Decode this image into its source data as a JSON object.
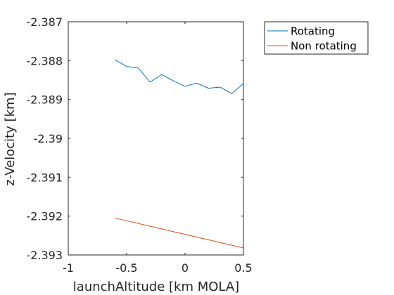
{
  "chart_data": {
    "type": "line",
    "title": "",
    "xlabel": "launchAltitude [km MOLA]",
    "ylabel": "z-Velocity [km]",
    "xlim": [
      -1,
      0.5
    ],
    "ylim": [
      -2.393,
      -2.387
    ],
    "xticks": [
      -1,
      -0.5,
      0,
      0.5
    ],
    "xtick_labels": [
      "-1",
      "-0.5",
      "0",
      "0.5"
    ],
    "yticks": [
      -2.393,
      -2.392,
      -2.391,
      -2.39,
      -2.389,
      -2.388,
      -2.387
    ],
    "ytick_labels": [
      "-2.393",
      "-2.392",
      "-2.391",
      "-2.39",
      "-2.389",
      "-2.388",
      "-2.387"
    ],
    "grid": false,
    "legend_position": "outside top-right",
    "series": [
      {
        "name": "Rotating",
        "color": "#0072BD",
        "x": [
          -0.6,
          -0.5,
          -0.4,
          -0.3,
          -0.2,
          -0.1,
          0.0,
          0.1,
          0.2,
          0.3,
          0.4,
          0.5
        ],
        "y": [
          -2.38798,
          -2.38815,
          -2.38819,
          -2.38855,
          -2.38836,
          -2.38852,
          -2.38866,
          -2.38858,
          -2.38871,
          -2.38868,
          -2.38885,
          -2.38859
        ]
      },
      {
        "name": "Non rotating",
        "color": "#D95319",
        "x": [
          -0.6,
          0.5
        ],
        "y": [
          -2.39205,
          -2.39282
        ]
      }
    ]
  }
}
